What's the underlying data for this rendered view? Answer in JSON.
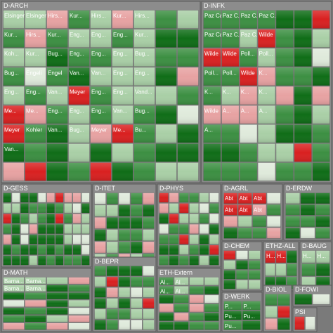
{
  "chart_data": {
    "type": "treemap",
    "title": "",
    "colors": {
      "background": "#7a7a7a",
      "header": "#8c8c8c",
      "strong_green": "#0f6d17",
      "mid_green": "#3c8f42",
      "light_green": "#a9cfa6",
      "pale": "#dfeadb",
      "pink": "#e7a2a2",
      "red": "#d92020"
    },
    "groups": [
      {
        "name": "D-ARCH",
        "subgroups": [
          {
            "labels": [
              "Elsinger",
              "Elsinger",
              "Hirs...",
              "Kur...",
              "Hirs...",
              "Kur...",
              "Hirs...",
              "Kur..."
            ],
            "tones": [
              3,
              3,
              5,
              2,
              3,
              5,
              3,
              2
            ]
          },
          {
            "labels": [
              "Hirs...",
              "Kur...",
              "Eng...",
              "Eng...",
              "Eng...",
              "Kur...",
              "Koh...",
              "Kur..."
            ],
            "tones": [
              5,
              2,
              3,
              3,
              2,
              3,
              3,
              3
            ]
          },
          {
            "labels": [
              "Bug...",
              "Eng...",
              "Eng...",
              "Eng...",
              "Bug...",
              "Bug..."
            ],
            "tones": [
              1,
              2,
              2,
              3,
              3,
              2
            ]
          },
          {
            "labels": [
              "Engeli",
              "Engel",
              "Van...",
              "Van...",
              "Eng...",
              "Eng..."
            ],
            "tones": [
              4,
              2,
              1,
              3,
              3,
              3
            ]
          },
          {
            "labels": [
              "Eng...",
              "Eng...",
              "Van...",
              "Meyer",
              "Eng...",
              "Eng..."
            ],
            "tones": [
              3,
              2,
              3,
              6,
              2,
              3
            ]
          },
          {
            "labels": [
              "Vand...",
              "Me...",
              "Me...",
              "Eng...",
              "Eng...",
              "Eng..."
            ],
            "tones": [
              3,
              6,
              5,
              2,
              3,
              2
            ]
          },
          {
            "labels": [
              "Van...",
              "Bug...",
              "Meyer",
              "Kohler",
              "Van...",
              "Bug..."
            ],
            "tones": [
              3,
              2,
              6,
              2,
              1,
              3
            ]
          },
          {
            "labels": [
              "Meyer",
              "Me...",
              "Bu...",
              "Van..."
            ],
            "tones": [
              5,
              6,
              2,
              1
            ]
          }
        ]
      },
      {
        "name": "D-INFK",
        "subgroups": [
          {
            "labels": [
              "Paz Car...",
              "Paz C...",
              "Paz C...",
              "Paz C..."
            ],
            "tones": [
              2,
              2,
              2,
              2
            ]
          },
          {
            "labels": [
              "Paz Car...",
              "Paz C...",
              "Paz C...",
              "Wilde",
              "Wilde"
            ],
            "tones": [
              2,
              2,
              3,
              6,
              6
            ]
          },
          {
            "labels": [
              "Wilde",
              "Poll...",
              "Poll...",
              "Poll...",
              "Poll..."
            ],
            "tones": [
              6,
              2,
              3,
              2,
              2
            ]
          },
          {
            "labels": [
              "Wilde",
              "K...",
              "K...",
              "K...",
              "K...",
              "K..."
            ],
            "tones": [
              6,
              5,
              2,
              3,
              5,
              3
            ]
          },
          {
            "labels": [
              "Wilde",
              "A...",
              "A...",
              "A...",
              "A..."
            ],
            "tones": [
              5,
              5,
              5,
              3,
              2
            ]
          }
        ]
      },
      {
        "name": "D-GESS",
        "subgroups": []
      },
      {
        "name": "D-ITET",
        "subgroups": []
      },
      {
        "name": "D-PHYS",
        "subgroups": []
      },
      {
        "name": "D-AGRL",
        "subgroups": [
          {
            "labels": [
              "Abt",
              "Abt",
              "Abt",
              "Abt",
              "Abt",
              "Abt"
            ],
            "tones": [
              6,
              6,
              6,
              6,
              6,
              5
            ]
          }
        ]
      },
      {
        "name": "D-ERDW",
        "subgroups": []
      },
      {
        "name": "D-MATH",
        "subgroups": [
          {
            "labels": [
              "Barna...",
              "Barna...",
              "Barna...",
              "Barna..."
            ],
            "tones": [
              3,
              3,
              3,
              3
            ]
          }
        ]
      },
      {
        "name": "D-BEPR",
        "subgroups": []
      },
      {
        "name": "ETH-Extern",
        "subgroups": [
          {
            "labels": [
              "Al...",
              "Al...",
              "Al...",
              "Al..."
            ],
            "tones": [
              2,
              3,
              2,
              3
            ]
          }
        ]
      },
      {
        "name": "D-CHEM",
        "subgroups": []
      },
      {
        "name": "ETHZ-ALL",
        "subgroups": [
          {
            "labels": [
              "H...",
              "H..."
            ],
            "tones": [
              6,
              6
            ]
          }
        ]
      },
      {
        "name": "D-BAUG",
        "subgroups": [
          {
            "labels": [
              "H...",
              "H..."
            ],
            "tones": [
              3,
              3
            ]
          }
        ]
      },
      {
        "name": "D-WERK",
        "subgroups": [
          {
            "labels": [
              "P...",
              "P...",
              "Pu...",
              "Pu...",
              "Pu..."
            ],
            "tones": [
              2,
              2,
              1,
              1,
              2
            ]
          }
        ]
      },
      {
        "name": "D-BIOL",
        "subgroups": []
      },
      {
        "name": "D-FOWI",
        "subgroups": []
      },
      {
        "name": "PSI",
        "subgroups": []
      }
    ]
  }
}
